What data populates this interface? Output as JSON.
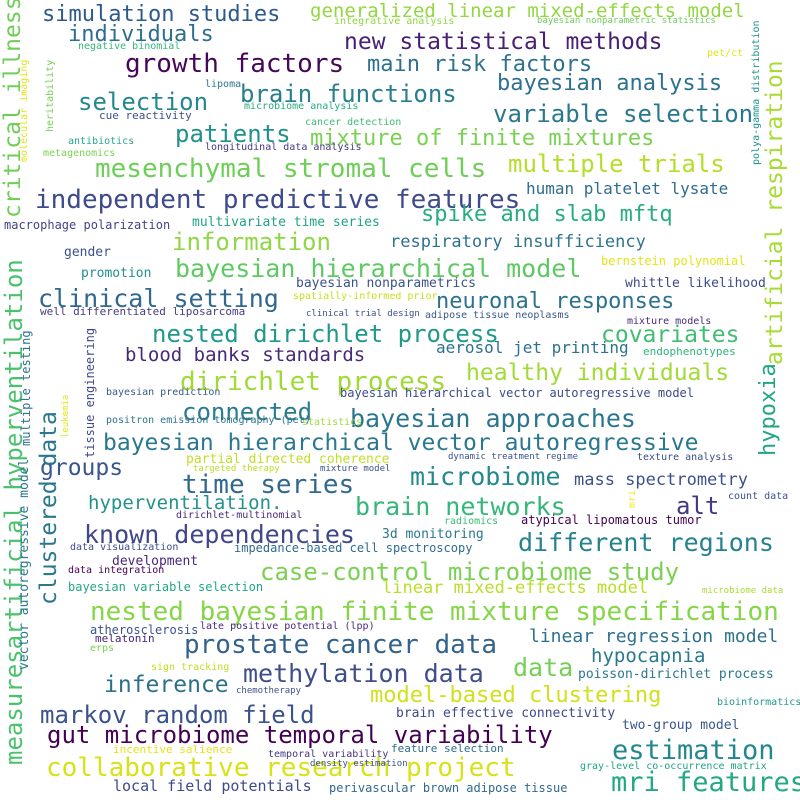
{
  "words": [
    {
      "text": "simulation studies",
      "color": "#2b5a8b"
    },
    {
      "text": "generalized linear mixed-effects model",
      "color": "#93d741"
    },
    {
      "text": "individuals",
      "color": "#2e6e8e"
    },
    {
      "text": "integrative analysis",
      "color": "#8fd744"
    },
    {
      "text": "bayesian nonparametric statistics",
      "color": "#6ccd5a"
    },
    {
      "text": "new statistical methods",
      "color": "#482173"
    },
    {
      "text": "pet/ct",
      "color": "#e2e418"
    },
    {
      "text": "negative binomial",
      "color": "#33b679"
    },
    {
      "text": "growth factors",
      "color": "#46075a"
    },
    {
      "text": "main risk factors",
      "color": "#2d718e"
    },
    {
      "text": "bayesian analysis",
      "color": "#2d718e"
    },
    {
      "text": "lipoma",
      "color": "#2a788e"
    },
    {
      "text": "brain functions",
      "color": "#287d8e"
    },
    {
      "text": "selection",
      "color": "#23888e"
    },
    {
      "text": "microbiome analysis",
      "color": "#25ac82"
    },
    {
      "text": "variable selection",
      "color": "#2a788e"
    },
    {
      "text": "cue reactivity",
      "color": "#3b528b"
    },
    {
      "text": "cancer detection",
      "color": "#3fbc73"
    },
    {
      "text": "patients",
      "color": "#21918c"
    },
    {
      "text": "mixture of finite mixtures",
      "color": "#7ad151"
    },
    {
      "text": "antibiotics",
      "color": "#22a785"
    },
    {
      "text": "longitudinal data analysis",
      "color": "#453781"
    },
    {
      "text": "metagenomics",
      "color": "#7ad151"
    },
    {
      "text": "mesenchymal stromal cells",
      "color": "#6ece58"
    },
    {
      "text": "multiple trials",
      "color": "#b5de2b"
    },
    {
      "text": "independent predictive features",
      "color": "#3e4a89"
    },
    {
      "text": "human platelet lysate",
      "color": "#2f6c8e"
    },
    {
      "text": "spike and slab mftq",
      "color": "#27ad81"
    },
    {
      "text": "macrophage polarization",
      "color": "#414487"
    },
    {
      "text": "multivariate time series",
      "color": "#20a486"
    },
    {
      "text": "information",
      "color": "#8fd744"
    },
    {
      "text": "respiratory insufficiency",
      "color": "#2c738e"
    },
    {
      "text": "gender",
      "color": "#3b528b"
    },
    {
      "text": "bayesian hierarchical model",
      "color": "#5ec962"
    },
    {
      "text": "bernstein polynomial",
      "color": "#e5e419"
    },
    {
      "text": "promotion",
      "color": "#21908d"
    },
    {
      "text": "bayesian nonparametrics",
      "color": "#3b528b"
    },
    {
      "text": "whittle likelihood",
      "color": "#3e4a89"
    },
    {
      "text": "clinical setting",
      "color": "#31688e"
    },
    {
      "text": "neuronal responses",
      "color": "#2c728e"
    },
    {
      "text": "spatially-informed prior",
      "color": "#c8e020"
    },
    {
      "text": "well differentiated liposarcoma",
      "color": "#433e85"
    },
    {
      "text": "clinical trial design",
      "color": "#3b528b"
    },
    {
      "text": "adipose tissue neoplasms",
      "color": "#38598c"
    },
    {
      "text": "mixture models",
      "color": "#482979"
    },
    {
      "text": "nested dirichlet process",
      "color": "#1f998a"
    },
    {
      "text": "covariates",
      "color": "#40bd72"
    },
    {
      "text": "aerosol jet printing",
      "color": "#2c728e"
    },
    {
      "text": "endophenotypes",
      "color": "#31b57b"
    },
    {
      "text": "blood banks standards",
      "color": "#482878"
    },
    {
      "text": "healthy individuals",
      "color": "#a2da37"
    },
    {
      "text": "dirichlet process",
      "color": "#a0da39"
    },
    {
      "text": "bayesian hierarchical vector autoregressive model",
      "color": "#3e4a89"
    },
    {
      "text": "bayesian prediction",
      "color": "#38598c"
    },
    {
      "text": "connected",
      "color": "#287c8e"
    },
    {
      "text": "bayesian approaches",
      "color": "#2a768e"
    },
    {
      "text": "positron emission tomography (pet)",
      "color": "#2c738e"
    },
    {
      "text": "statistics",
      "color": "#9dd93b"
    },
    {
      "text": "partial directed coherence",
      "color": "#c0df25"
    },
    {
      "text": "bayesian hierarchical vector autoregressive",
      "color": "#2a788e"
    },
    {
      "text": "targeted therapy",
      "color": "#bade28"
    },
    {
      "text": "dynamic treatment regime",
      "color": "#3b528b"
    },
    {
      "text": "groups",
      "color": "#39568c"
    },
    {
      "text": "mixture model",
      "color": "#3b528b"
    },
    {
      "text": "texture analysis",
      "color": "#3e4a89"
    },
    {
      "text": "time series",
      "color": "#31688e"
    },
    {
      "text": "microbiome",
      "color": "#23898e"
    },
    {
      "text": "mass spectrometry",
      "color": "#3b528b"
    },
    {
      "text": "brain networks",
      "color": "#35b779"
    },
    {
      "text": "alt",
      "color": "#443983"
    },
    {
      "text": "hyperventilation.",
      "color": "#21918c"
    },
    {
      "text": "count data",
      "color": "#3b528b"
    },
    {
      "text": "dirichlet-multinomial",
      "color": "#482878"
    },
    {
      "text": "radiomics",
      "color": "#38b977"
    },
    {
      "text": "atypical lipomatous tumor",
      "color": "#440154"
    },
    {
      "text": "known dependencies",
      "color": "#3f4788"
    },
    {
      "text": "3d monitoring",
      "color": "#2a788e"
    },
    {
      "text": "different regions",
      "color": "#26828e"
    },
    {
      "text": "impedance-based cell spectroscopy",
      "color": "#2f6b8e"
    },
    {
      "text": "data visualization",
      "color": "#3e4a89"
    },
    {
      "text": "development",
      "color": "#482878"
    },
    {
      "text": "case-control microbiome study",
      "color": "#7ad151"
    },
    {
      "text": "data integration",
      "color": "#440154"
    },
    {
      "text": "linear mixed-effects model",
      "color": "#b8de29"
    },
    {
      "text": "microbiome data",
      "color": "#a8db34"
    },
    {
      "text": "bayesian variable selection",
      "color": "#21a685"
    },
    {
      "text": "nested bayesian finite mixture specification",
      "color": "#86d549"
    },
    {
      "text": "atherosclerosis",
      "color": "#3b528b"
    },
    {
      "text": "late positive potential (lpp)",
      "color": "#482878"
    },
    {
      "text": "melatonin",
      "color": "#482475"
    },
    {
      "text": "prostate cancer data",
      "color": "#33638d"
    },
    {
      "text": "linear regression model",
      "color": "#2c728e"
    },
    {
      "text": "erps",
      "color": "#7ad151"
    },
    {
      "text": "hypocapnia",
      "color": "#2a788e"
    },
    {
      "text": "methylation data",
      "color": "#3d4e8a"
    },
    {
      "text": "data",
      "color": "#73d056"
    },
    {
      "text": "sign tracking",
      "color": "#c2df23"
    },
    {
      "text": "poisson-dirichlet process",
      "color": "#2a788e"
    },
    {
      "text": "inference",
      "color": "#2d708e"
    },
    {
      "text": "model-based clustering",
      "color": "#d0e11c"
    },
    {
      "text": "chemotherapy",
      "color": "#3b528b"
    },
    {
      "text": "bioinformatics",
      "color": "#1f988b"
    },
    {
      "text": "markov random field",
      "color": "#3b528b"
    },
    {
      "text": "brain effective connectivity",
      "color": "#3e4a89"
    },
    {
      "text": "gut microbiome temporal variability",
      "color": "#440154"
    },
    {
      "text": "two-group model",
      "color": "#39568c"
    },
    {
      "text": "estimation",
      "color": "#24878e"
    },
    {
      "text": "incentive salience",
      "color": "#e5e419"
    },
    {
      "text": "temporal variability",
      "color": "#453581"
    },
    {
      "text": "feature selection",
      "color": "#2f6c8e"
    },
    {
      "text": "gray-level co-occurrence matrix",
      "color": "#20a386"
    },
    {
      "text": "collaborative research project",
      "color": "#d8e219"
    },
    {
      "text": "density estimation",
      "color": "#3b528b"
    },
    {
      "text": "mri features",
      "color": "#22a884"
    },
    {
      "text": "local field potentials",
      "color": "#3e4a89"
    },
    {
      "text": "perivascular brown adipose tissue",
      "color": "#31688e"
    },
    {
      "text": "critical illness",
      "color": "#6ece58"
    },
    {
      "text": "molecular imaging",
      "color": "#e2e418"
    },
    {
      "text": "heritability",
      "color": "#75d054"
    },
    {
      "text": "measuresartificial hyperventilation",
      "color": "#4ac16d"
    },
    {
      "text": "clustered data",
      "color": "#2a788e"
    },
    {
      "text": "multiple testing",
      "color": "#2d718e"
    },
    {
      "text": "tissue engineering",
      "color": "#3e4a89"
    },
    {
      "text": "vector autoregressive model",
      "color": "#2a788e"
    },
    {
      "text": "leukemia",
      "color": "#e5e419"
    },
    {
      "text": "polya-gamma distribution",
      "color": "#20928c"
    },
    {
      "text": "artificial respiration",
      "color": "#a8db34"
    },
    {
      "text": "hypoxia",
      "color": "#21a685"
    },
    {
      "text": "mri",
      "color": "#f5e61e"
    }
  ]
}
